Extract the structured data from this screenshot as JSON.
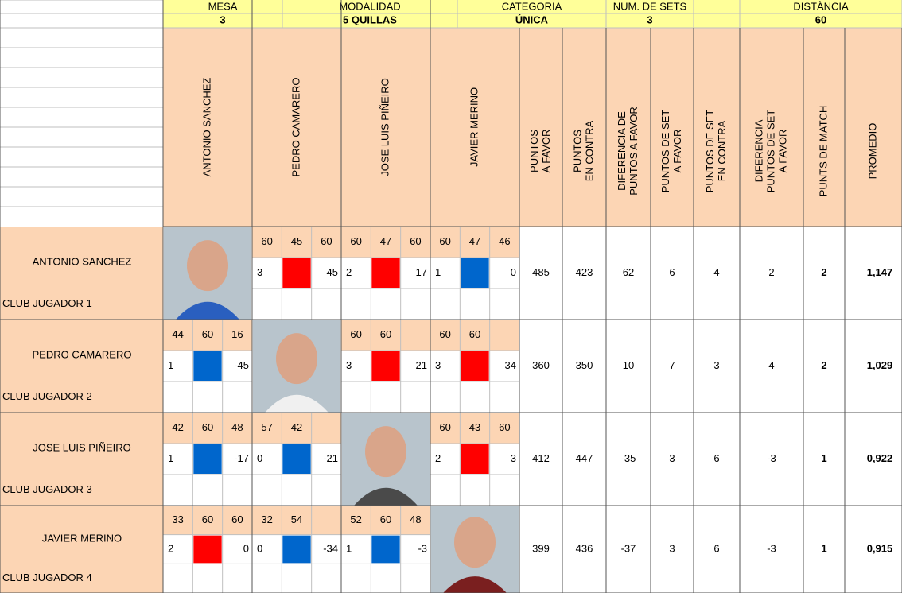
{
  "header": {
    "groups": [
      {
        "label": "MESA",
        "value": 3
      },
      {
        "label": "MODALIDAD",
        "value": "5 QUILLAS"
      },
      {
        "label": "CATEGORIA",
        "value": "ÚNICA"
      },
      {
        "label": "NUM. DE SETS",
        "value": 3
      },
      {
        "label": "DISTÀNCIA",
        "value": 60
      }
    ]
  },
  "columns": {
    "players": [
      "ANTONIO SANCHEZ",
      "PEDRO CAMARERO",
      "JOSE LUIS PIÑEIRO",
      "JAVIER MERINO"
    ],
    "stats": [
      [
        "PUNTOS",
        "A FAVOR"
      ],
      [
        "PUNTOS",
        "EN CONTRA"
      ],
      [
        "DIFERENCIA DE",
        "PUNTOS A FAVOR"
      ],
      [
        "PUNTOS DE SET",
        "A FAVOR"
      ],
      [
        "PUNTOS DE SET",
        "EN CONTRA"
      ],
      [
        "DIFERENCIA",
        "PUNTOS DE SET",
        "A FAVOR"
      ],
      [
        "PUNTS DE MATCH"
      ],
      [
        "PROMEDIO"
      ]
    ]
  },
  "rows": [
    {
      "name": "ANTONIO SANCHEZ",
      "club": "CLUB JUGADOR 1",
      "games": [
        null,
        {
          "scores": [
            60,
            45,
            60
          ],
          "left": 3,
          "color": "#ff0000",
          "right": 45
        },
        {
          "scores": [
            60,
            47,
            60
          ],
          "left": 2,
          "color": "#ff0000",
          "right": 17
        },
        {
          "scores": [
            60,
            47,
            46
          ],
          "left": 1,
          "color": "#0066cc",
          "right": 0
        }
      ],
      "stats": [
        485,
        423,
        62,
        6,
        4,
        2,
        2,
        "1,147"
      ]
    },
    {
      "name": "PEDRO CAMARERO",
      "club": "CLUB JUGADOR 2",
      "games": [
        {
          "scores": [
            44,
            60,
            16
          ],
          "left": 1,
          "color": "#0066cc",
          "right": -45
        },
        null,
        {
          "scores": [
            60,
            60
          ],
          "left": 3,
          "color": "#ff0000",
          "right": 21
        },
        {
          "scores": [
            60,
            60
          ],
          "left": 3,
          "color": "#ff0000",
          "right": 34
        }
      ],
      "stats": [
        360,
        350,
        10,
        7,
        3,
        4,
        2,
        "1,029"
      ]
    },
    {
      "name": "JOSE LUIS PIÑEIRO",
      "club": "CLUB JUGADOR 3",
      "games": [
        {
          "scores": [
            42,
            60,
            48
          ],
          "left": 1,
          "color": "#0066cc",
          "right": -17
        },
        {
          "scores": [
            57,
            42
          ],
          "left": 0,
          "color": "#0066cc",
          "right": -21
        },
        null,
        {
          "scores": [
            60,
            43,
            60
          ],
          "left": 2,
          "color": "#ff0000",
          "right": 3
        }
      ],
      "stats": [
        412,
        447,
        -35,
        3,
        6,
        -3,
        1,
        "0,922"
      ]
    },
    {
      "name": "JAVIER MERINO",
      "club": "CLUB JUGADOR 4",
      "games": [
        {
          "scores": [
            33,
            60,
            60
          ],
          "left": 2,
          "color": "#ff0000",
          "right": 0
        },
        {
          "scores": [
            32,
            54
          ],
          "left": 0,
          "color": "#0066cc",
          "right": -34
        },
        {
          "scores": [
            52,
            60,
            48
          ],
          "left": 1,
          "color": "#0066cc",
          "right": -3
        },
        null
      ],
      "stats": [
        399,
        436,
        -37,
        3,
        6,
        -3,
        1,
        "0,915"
      ]
    }
  ]
}
